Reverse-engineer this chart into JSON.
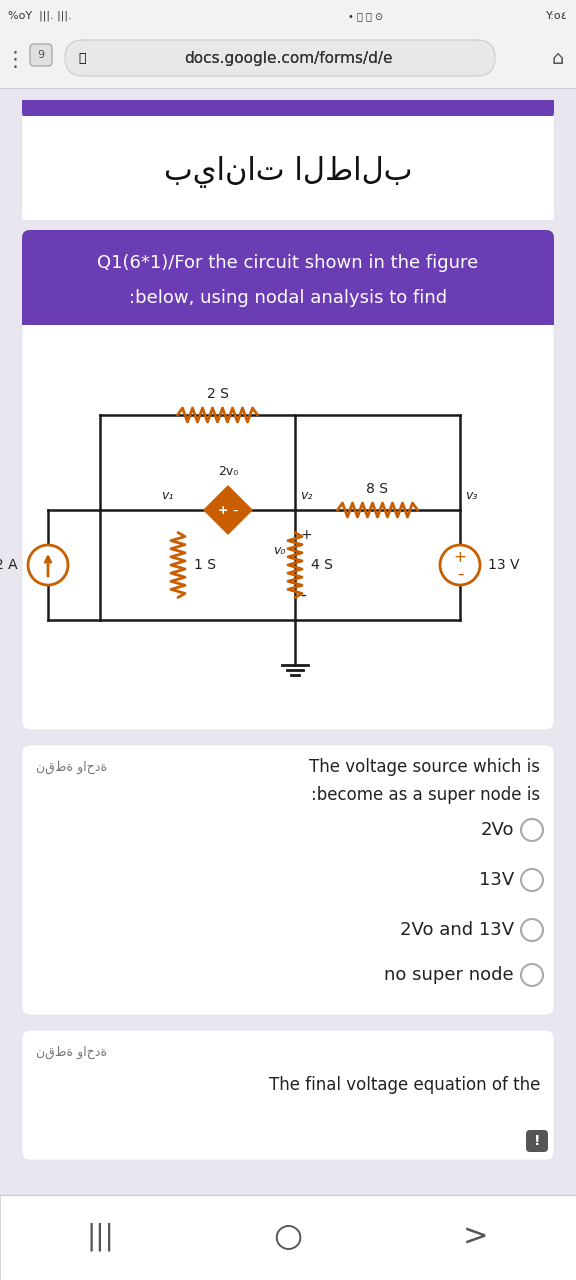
{
  "bg_color": "#eae6f0",
  "card_bg": "#ffffff",
  "purple_dark": "#6b3db5",
  "purple_strip": "#7b3fb8",
  "wire_color": "#1a1a1a",
  "resistor_color": "#c85e00",
  "source_orange": "#c85e00",
  "diamond_fill": "#c85e00",
  "text_dark": "#222222",
  "text_gray": "#888888",
  "radio_border": "#aaaaaa",
  "status_bg": "#f0f0f0",
  "url_bg": "#e8e8e8",
  "nav_bg": "#ffffff",
  "card1_title": "بيانات الطالب",
  "card2_line1": "Q1(6*1)/For the circuit shown in the figure",
  "card2_line2": ":below, using nodal analysis to find",
  "lbl_2S": "2 S",
  "lbl_8S": "8 S",
  "lbl_1S": "1 S",
  "lbl_4S": "4 S",
  "lbl_2A": "2 A",
  "lbl_13V": "13 V",
  "lbl_2Vo": "2v₀",
  "lbl_v1": "v₁",
  "lbl_v2": "v₂",
  "lbl_v3": "v₃",
  "lbl_vo": "v₀",
  "points_label": "نقطة واحدة",
  "q3_line1": "The voltage source which is",
  "q3_line2": ":become as a super node is",
  "radio_options": [
    "2Vo",
    "13V",
    "2Vo and 13V",
    "no super node"
  ],
  "q4_text": "The final voltage equation of the",
  "q4_points": "نقطة واحدة"
}
